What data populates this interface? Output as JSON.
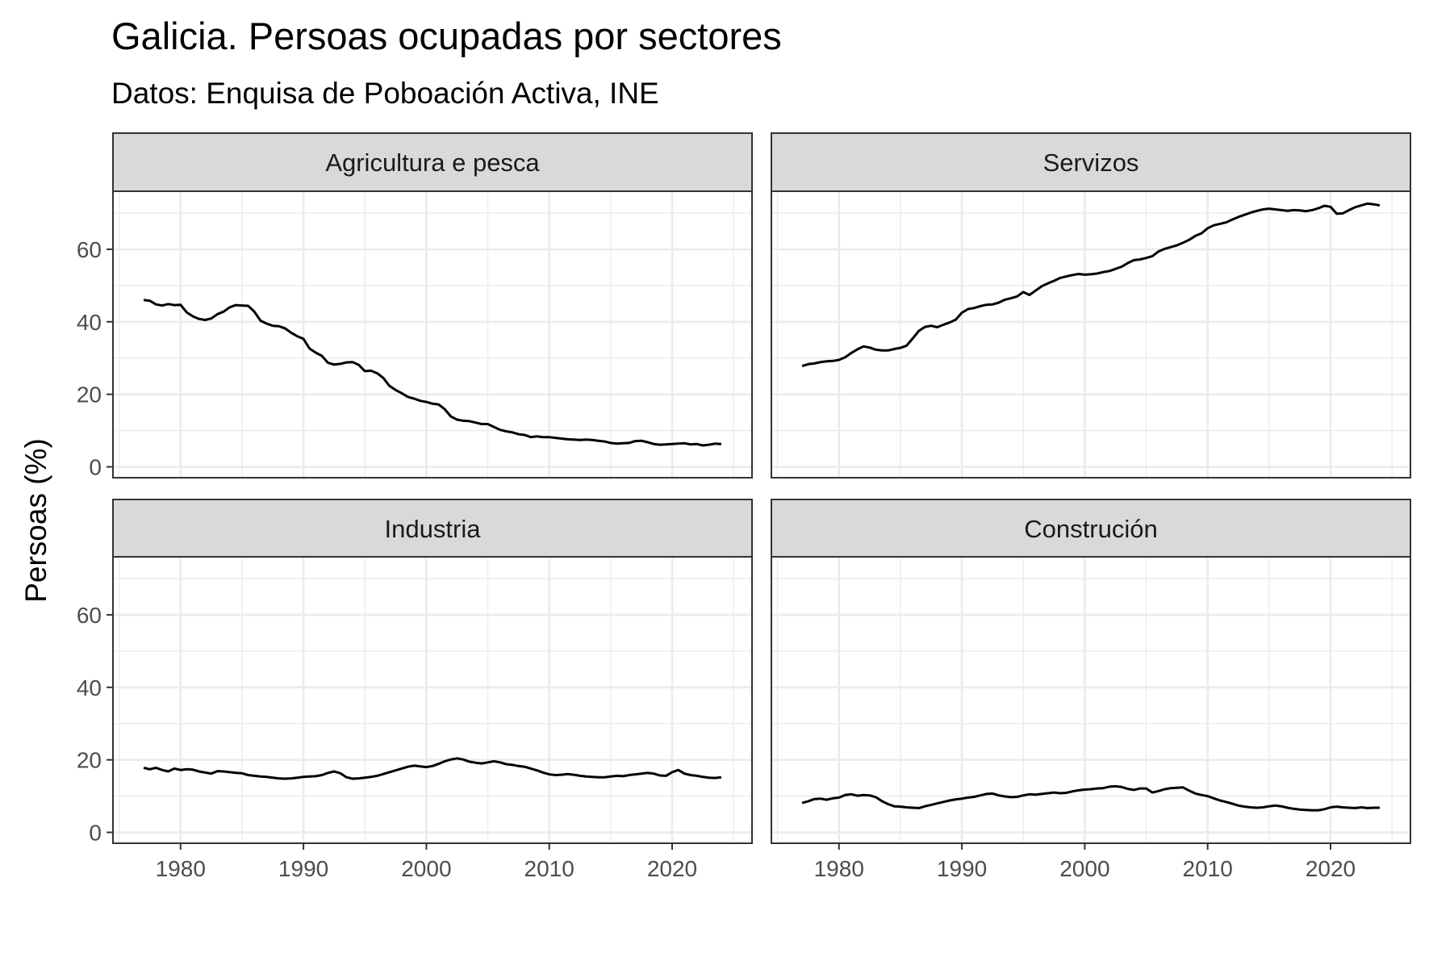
{
  "chart_data": {
    "type": "line",
    "title": "Galicia. Persoas ocupadas por sectores",
    "subtitle": "Datos: Enquisa de Poboación Activa, INE",
    "ylabel": "Persoas (%)",
    "xlabel": "",
    "xlim": [
      1974.5,
      2026.5
    ],
    "ylim": [
      -3,
      76
    ],
    "x_ticks": [
      1980,
      1990,
      2000,
      2010,
      2020
    ],
    "x_tick_labels": [
      "1980",
      "1990",
      "2000",
      "2010",
      "2020"
    ],
    "y_ticks": [
      0,
      20,
      40,
      60
    ],
    "y_tick_labels": [
      "0",
      "20",
      "40",
      "60"
    ],
    "grid": true,
    "legend": "none",
    "line_color": "#000000",
    "facets": [
      {
        "name": "Agricultura e pesca",
        "x": [
          1977,
          1977.5,
          1978,
          1978.5,
          1979,
          1979.5,
          1980,
          1980.5,
          1981,
          1981.5,
          1982,
          1982.5,
          1983,
          1983.5,
          1984,
          1984.5,
          1985,
          1985.5,
          1986,
          1986.5,
          1987,
          1987.5,
          1988,
          1988.5,
          1989,
          1989.5,
          1990,
          1990.5,
          1991,
          1991.5,
          1992,
          1992.5,
          1993,
          1993.5,
          1994,
          1994.5,
          1995,
          1995.5,
          1996,
          1996.5,
          1997,
          1997.5,
          1998,
          1998.5,
          1999,
          1999.5,
          2000,
          2000.5,
          2001,
          2001.5,
          2002,
          2002.5,
          2003,
          2003.5,
          2004,
          2004.5,
          2005,
          2005.5,
          2006,
          2006.5,
          2007,
          2007.5,
          2008,
          2008.5,
          2009,
          2009.5,
          2010,
          2010.5,
          2011,
          2011.5,
          2012,
          2012.5,
          2013,
          2013.5,
          2014,
          2014.5,
          2015,
          2015.5,
          2016,
          2016.5,
          2017,
          2017.5,
          2018,
          2018.5,
          2019,
          2019.5,
          2020,
          2020.5,
          2021,
          2021.5,
          2022,
          2022.5,
          2023,
          2023.5,
          2024
        ],
        "y": [
          46,
          45.8,
          44.8,
          44.5,
          44.9,
          44.6,
          44.7,
          42.6,
          41.5,
          40.8,
          40.5,
          40.9,
          42.1,
          42.8,
          44,
          44.6,
          44.5,
          44.4,
          42.8,
          40.3,
          39.5,
          38.9,
          38.8,
          38.2,
          37,
          36,
          35.3,
          32.6,
          31.5,
          30.6,
          28.7,
          28.2,
          28.4,
          28.8,
          28.9,
          28.1,
          26.4,
          26.5,
          25.8,
          24.5,
          22.3,
          21.2,
          20.3,
          19.3,
          18.8,
          18.2,
          17.9,
          17.4,
          17.2,
          15.9,
          13.9,
          13,
          12.7,
          12.6,
          12.2,
          11.8,
          11.8,
          11,
          10.2,
          9.8,
          9.5,
          9,
          8.8,
          8.2,
          8.4,
          8.2,
          8.2,
          8,
          7.8,
          7.6,
          7.5,
          7.4,
          7.5,
          7.4,
          7.2,
          7,
          6.6,
          6.4,
          6.5,
          6.6,
          7.1,
          7.2,
          6.8,
          6.3,
          6.1,
          6.2,
          6.3,
          6.4,
          6.5,
          6.2,
          6.3,
          5.9,
          6.1,
          6.4,
          6.3
        ],
        "ylabel": "Persoas (%)"
      },
      {
        "name": "Servizos",
        "x": [
          1977,
          1977.5,
          1978,
          1978.5,
          1979,
          1979.5,
          1980,
          1980.5,
          1981,
          1981.5,
          1982,
          1982.5,
          1983,
          1983.5,
          1984,
          1984.5,
          1985,
          1985.5,
          1986,
          1986.5,
          1987,
          1987.5,
          1988,
          1988.5,
          1989,
          1989.5,
          1990,
          1990.5,
          1991,
          1991.5,
          1992,
          1992.5,
          1993,
          1993.5,
          1994,
          1994.5,
          1995,
          1995.5,
          1996,
          1996.5,
          1997,
          1997.5,
          1998,
          1998.5,
          1999,
          1999.5,
          2000,
          2000.5,
          2001,
          2001.5,
          2002,
          2002.5,
          2003,
          2003.5,
          2004,
          2004.5,
          2005,
          2005.5,
          2006,
          2006.5,
          2007,
          2007.5,
          2008,
          2008.5,
          2009,
          2009.5,
          2010,
          2010.5,
          2011,
          2011.5,
          2012,
          2012.5,
          2013,
          2013.5,
          2014,
          2014.5,
          2015,
          2015.5,
          2016,
          2016.5,
          2017,
          2017.5,
          2018,
          2018.5,
          2019,
          2019.5,
          2020,
          2020.5,
          2021,
          2021.5,
          2022,
          2022.5,
          2023,
          2023.5,
          2024
        ],
        "y": [
          27.8,
          28.3,
          28.5,
          28.9,
          29.1,
          29.2,
          29.5,
          30.2,
          31.4,
          32.4,
          33.2,
          32.9,
          32.3,
          32.1,
          32.1,
          32.5,
          32.8,
          33.4,
          35.4,
          37.5,
          38.6,
          38.9,
          38.5,
          39.2,
          39.8,
          40.6,
          42.5,
          43.5,
          43.8,
          44.3,
          44.7,
          44.8,
          45.3,
          46.1,
          46.5,
          47,
          48.2,
          47.4,
          48.6,
          49.8,
          50.6,
          51.3,
          52.1,
          52.5,
          52.9,
          53.2,
          53,
          53.1,
          53.3,
          53.7,
          54,
          54.6,
          55.2,
          56.2,
          57,
          57.2,
          57.6,
          58.1,
          59.4,
          60.1,
          60.6,
          61.1,
          61.8,
          62.6,
          63.7,
          64.4,
          65.8,
          66.6,
          67,
          67.4,
          68.2,
          68.9,
          69.5,
          70.1,
          70.6,
          71,
          71.2,
          71,
          70.8,
          70.6,
          70.8,
          70.7,
          70.5,
          70.8,
          71.3,
          72,
          71.7,
          69.8,
          69.9,
          70.8,
          71.6,
          72.1,
          72.6,
          72.4,
          72.1
        ]
      },
      {
        "name": "Industria",
        "x": [
          1977,
          1977.5,
          1978,
          1978.5,
          1979,
          1979.5,
          1980,
          1980.5,
          1981,
          1981.5,
          1982,
          1982.5,
          1983,
          1983.5,
          1984,
          1984.5,
          1985,
          1985.5,
          1986,
          1986.5,
          1987,
          1987.5,
          1988,
          1988.5,
          1989,
          1989.5,
          1990,
          1990.5,
          1991,
          1991.5,
          1992,
          1992.5,
          1993,
          1993.5,
          1994,
          1994.5,
          1995,
          1995.5,
          1996,
          1996.5,
          1997,
          1997.5,
          1998,
          1998.5,
          1999,
          1999.5,
          2000,
          2000.5,
          2001,
          2001.5,
          2002,
          2002.5,
          2003,
          2003.5,
          2004,
          2004.5,
          2005,
          2005.5,
          2006,
          2006.5,
          2007,
          2007.5,
          2008,
          2008.5,
          2009,
          2009.5,
          2010,
          2010.5,
          2011,
          2011.5,
          2012,
          2012.5,
          2013,
          2013.5,
          2014,
          2014.5,
          2015,
          2015.5,
          2016,
          2016.5,
          2017,
          2017.5,
          2018,
          2018.5,
          2019,
          2019.5,
          2020,
          2020.5,
          2021,
          2021.5,
          2022,
          2022.5,
          2023,
          2023.5,
          2024
        ],
        "y": [
          17.8,
          17.4,
          17.8,
          17.2,
          16.8,
          17.6,
          17.2,
          17.4,
          17.3,
          16.8,
          16.5,
          16.2,
          16.9,
          16.8,
          16.6,
          16.4,
          16.3,
          15.8,
          15.6,
          15.4,
          15.3,
          15.1,
          14.9,
          14.8,
          14.9,
          15.1,
          15.3,
          15.4,
          15.5,
          15.8,
          16.4,
          16.8,
          16.3,
          15.2,
          14.8,
          14.9,
          15.1,
          15.3,
          15.6,
          16.1,
          16.6,
          17.1,
          17.6,
          18.1,
          18.4,
          18.2,
          18,
          18.3,
          18.9,
          19.6,
          20.1,
          20.4,
          20.1,
          19.5,
          19.2,
          19,
          19.3,
          19.6,
          19.3,
          18.8,
          18.6,
          18.3,
          18.1,
          17.6,
          17.1,
          16.5,
          16,
          15.8,
          15.9,
          16.1,
          15.9,
          15.6,
          15.4,
          15.3,
          15.2,
          15.2,
          15.4,
          15.6,
          15.5,
          15.8,
          16,
          16.2,
          16.4,
          16.2,
          15.7,
          15.6,
          16.6,
          17.2,
          16.2,
          15.8,
          15.6,
          15.3,
          15.1,
          15,
          15.2
        ]
      },
      {
        "name": "Construción",
        "x": [
          1977,
          1977.5,
          1978,
          1978.5,
          1979,
          1979.5,
          1980,
          1980.5,
          1981,
          1981.5,
          1982,
          1982.5,
          1983,
          1983.5,
          1984,
          1984.5,
          1985,
          1985.5,
          1986,
          1986.5,
          1987,
          1987.5,
          1988,
          1988.5,
          1989,
          1989.5,
          1990,
          1990.5,
          1991,
          1991.5,
          1992,
          1992.5,
          1993,
          1993.5,
          1994,
          1994.5,
          1995,
          1995.5,
          1996,
          1996.5,
          1997,
          1997.5,
          1998,
          1998.5,
          1999,
          1999.5,
          2000,
          2000.5,
          2001,
          2001.5,
          2002,
          2002.5,
          2003,
          2003.5,
          2004,
          2004.5,
          2005,
          2005.5,
          2006,
          2006.5,
          2007,
          2007.5,
          2008,
          2008.5,
          2009,
          2009.5,
          2010,
          2010.5,
          2011,
          2011.5,
          2012,
          2012.5,
          2013,
          2013.5,
          2014,
          2014.5,
          2015,
          2015.5,
          2016,
          2016.5,
          2017,
          2017.5,
          2018,
          2018.5,
          2019,
          2019.5,
          2020,
          2020.5,
          2021,
          2021.5,
          2022,
          2022.5,
          2023,
          2023.5,
          2024
        ],
        "y": [
          8.1,
          8.6,
          9.2,
          9.3,
          9,
          9.4,
          9.6,
          10.3,
          10.5,
          10.1,
          10.3,
          10.2,
          9.7,
          8.6,
          7.8,
          7.2,
          7.1,
          6.9,
          6.8,
          6.7,
          7.2,
          7.6,
          8,
          8.4,
          8.8,
          9.1,
          9.3,
          9.6,
          9.8,
          10.2,
          10.6,
          10.7,
          10.2,
          9.9,
          9.7,
          9.8,
          10.2,
          10.5,
          10.4,
          10.6,
          10.8,
          11,
          10.8,
          10.9,
          11.3,
          11.6,
          11.8,
          11.9,
          12.1,
          12.2,
          12.6,
          12.7,
          12.5,
          12,
          11.7,
          12.1,
          12.1,
          11,
          11.4,
          11.9,
          12.2,
          12.3,
          12.4,
          11.5,
          10.7,
          10.3,
          10,
          9.4,
          8.8,
          8.4,
          7.9,
          7.4,
          7.1,
          6.9,
          6.8,
          6.9,
          7.2,
          7.4,
          7.2,
          6.8,
          6.5,
          6.3,
          6.2,
          6.1,
          6.1,
          6.4,
          6.9,
          7.1,
          6.9,
          6.8,
          6.7,
          6.9,
          6.7,
          6.8,
          6.8
        ]
      }
    ]
  }
}
